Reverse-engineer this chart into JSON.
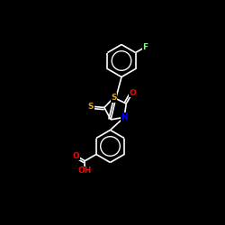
{
  "background_color": "#000000",
  "atom_colors": {
    "S": "#DAA520",
    "N": "#0000FF",
    "O": "#FF0000",
    "F": "#90EE90",
    "C": "#FFFFFF",
    "H": "#FFFFFF"
  },
  "bond_color": "#FFFFFF",
  "bond_width": 1.2,
  "font_size_atom": 6.5,
  "fig_width": 2.5,
  "fig_height": 2.5,
  "dpi": 100,
  "xlim": [
    0,
    10
  ],
  "ylim": [
    0,
    10
  ]
}
